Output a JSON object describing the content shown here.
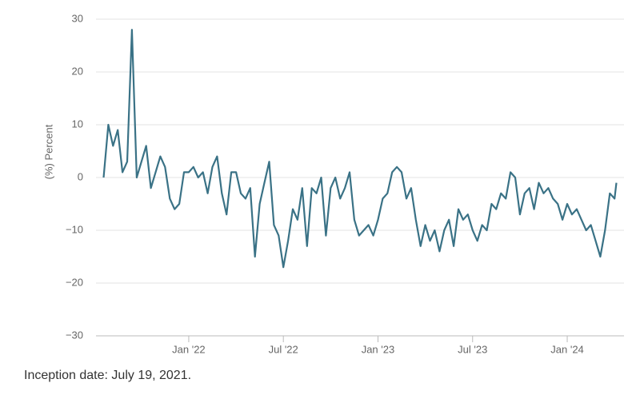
{
  "chart_data": {
    "type": "line",
    "y_label": "(%) Percent",
    "footnote": "Inception date: July 19, 2021.",
    "color": "#3a7286",
    "grid": true,
    "xlim": [
      2021.51,
      2024.3
    ],
    "xticks": [
      {
        "value": 2022.0,
        "label": "Jan '22"
      },
      {
        "value": 2022.5,
        "label": "Jul '22"
      },
      {
        "value": 2023.0,
        "label": "Jan '23"
      },
      {
        "value": 2023.5,
        "label": "Jul '23"
      },
      {
        "value": 2024.0,
        "label": "Jan '24"
      }
    ],
    "ylim": [
      -30,
      30
    ],
    "yticks": [
      {
        "value": -30,
        "label": "−30"
      },
      {
        "value": -20,
        "label": "−20"
      },
      {
        "value": -10,
        "label": "−10"
      },
      0,
      10,
      20,
      30
    ],
    "x": [
      2021.55,
      2021.575,
      2021.6,
      2021.625,
      2021.65,
      2021.675,
      2021.7,
      2021.725,
      2021.75,
      2021.775,
      2021.8,
      2021.825,
      2021.85,
      2021.875,
      2021.9,
      2021.925,
      2021.95,
      2021.975,
      2022.0,
      2022.025,
      2022.05,
      2022.075,
      2022.1,
      2022.125,
      2022.15,
      2022.175,
      2022.2,
      2022.225,
      2022.25,
      2022.275,
      2022.3,
      2022.325,
      2022.35,
      2022.375,
      2022.4,
      2022.425,
      2022.45,
      2022.475,
      2022.5,
      2022.525,
      2022.55,
      2022.575,
      2022.6,
      2022.625,
      2022.65,
      2022.675,
      2022.7,
      2022.725,
      2022.75,
      2022.775,
      2022.8,
      2022.825,
      2022.85,
      2022.875,
      2022.9,
      2022.925,
      2022.95,
      2022.975,
      2023.0,
      2023.025,
      2023.05,
      2023.075,
      2023.1,
      2023.125,
      2023.15,
      2023.175,
      2023.2,
      2023.225,
      2023.25,
      2023.275,
      2023.3,
      2023.325,
      2023.35,
      2023.375,
      2023.4,
      2023.425,
      2023.45,
      2023.475,
      2023.5,
      2023.525,
      2023.55,
      2023.575,
      2023.6,
      2023.625,
      2023.65,
      2023.675,
      2023.7,
      2023.725,
      2023.75,
      2023.775,
      2023.8,
      2023.825,
      2023.85,
      2023.875,
      2023.9,
      2023.925,
      2023.95,
      2023.975,
      2024.0,
      2024.025,
      2024.05,
      2024.075,
      2024.1,
      2024.125,
      2024.15,
      2024.175,
      2024.2,
      2024.225,
      2024.25,
      2024.26
    ],
    "values": [
      0,
      10,
      6,
      9,
      1,
      3,
      28,
      0,
      3,
      6,
      -2,
      1,
      4,
      2,
      -4,
      -6,
      -5,
      1,
      1,
      2,
      0,
      1,
      -3,
      2,
      4,
      -3,
      -7,
      1,
      1,
      -3,
      -4,
      -2,
      -15,
      -5,
      -1,
      3,
      -9,
      -11,
      -17,
      -12,
      -6,
      -8,
      -2,
      -13,
      -2,
      -3,
      0,
      -11,
      -2,
      0,
      -4,
      -2,
      1,
      -8,
      -11,
      -10,
      -9,
      -11,
      -8,
      -4,
      -3,
      1,
      2,
      1,
      -4,
      -2,
      -8,
      -13,
      -9,
      -12,
      -10,
      -14,
      -10,
      -8,
      -13,
      -6,
      -8,
      -7,
      -10,
      -12,
      -9,
      -10,
      -5,
      -6,
      -3,
      -4,
      1,
      0,
      -7,
      -3,
      -2,
      -6,
      -1,
      -3,
      -2,
      -4,
      -5,
      -8,
      -5,
      -7,
      -6,
      -8,
      -10,
      -9,
      -12,
      -15,
      -10,
      -3,
      -4,
      -1
    ]
  }
}
